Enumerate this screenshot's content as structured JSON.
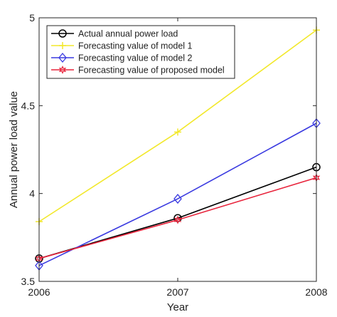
{
  "chart_data": {
    "type": "line",
    "title": "",
    "xlabel": "Year",
    "ylabel": "Annual power load value",
    "x": [
      2006,
      2007,
      2008
    ],
    "xlim": [
      2006,
      2008
    ],
    "ylim": [
      3.5,
      5
    ],
    "xticks": [
      "2006",
      "2007",
      "2008"
    ],
    "yticks": [
      "3.5",
      "4",
      "4.5",
      "5"
    ],
    "grid": false,
    "legend_position": "top-left",
    "series": [
      {
        "name": "Actual annual power load",
        "values": [
          3.63,
          3.86,
          4.15
        ],
        "color": "#000000",
        "marker": "circle"
      },
      {
        "name": "Forecasting value of model 1",
        "values": [
          3.84,
          4.35,
          4.93
        ],
        "color": "#f2e82b",
        "marker": "plus"
      },
      {
        "name": "Forecasting value of model 2",
        "values": [
          3.59,
          3.97,
          4.4
        ],
        "color": "#3a3ae0",
        "marker": "diamond"
      },
      {
        "name": "Forecasting value of proposed model",
        "values": [
          3.63,
          3.85,
          4.09
        ],
        "color": "#e8243c",
        "marker": "hexagram"
      }
    ]
  }
}
